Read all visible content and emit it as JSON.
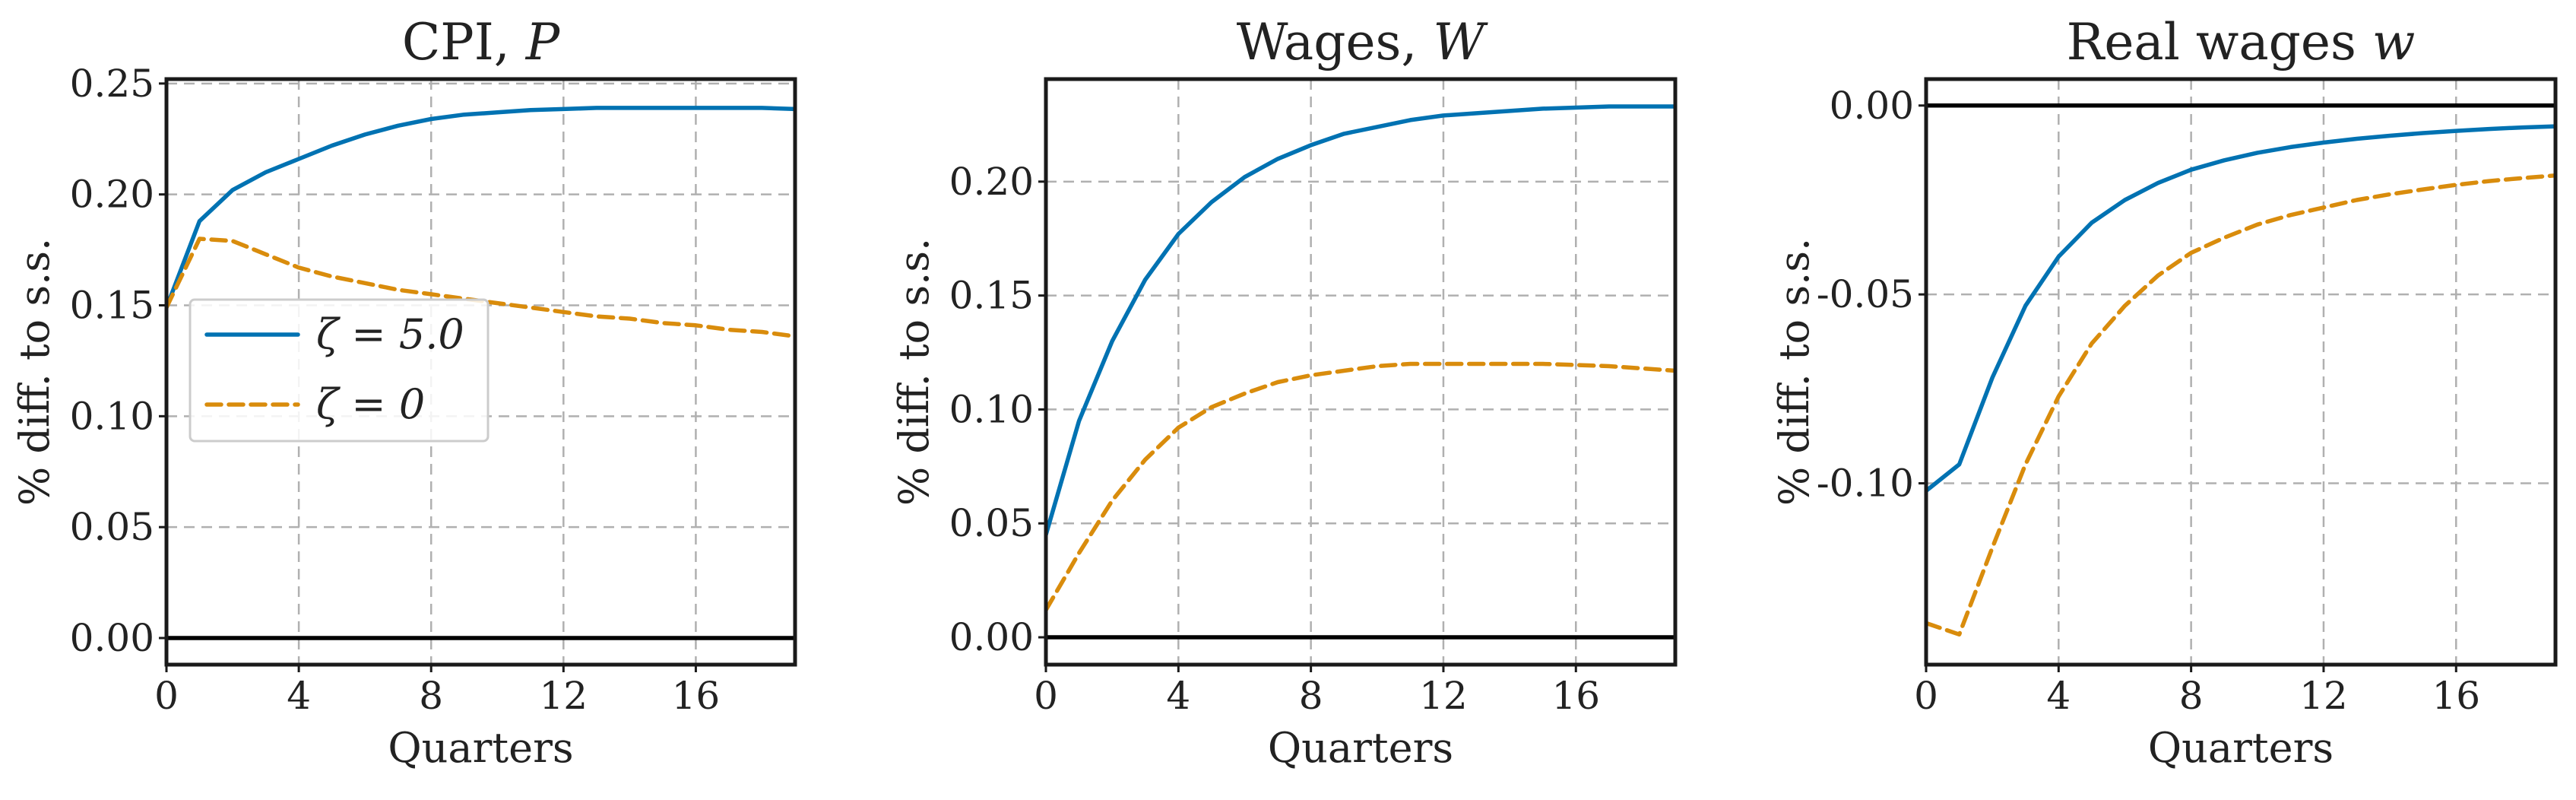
{
  "colors": {
    "zeta_5": "#0072b2",
    "zeta_0": "#d98c0c"
  },
  "chart_data": [
    {
      "type": "line",
      "title": "CPI, P",
      "title_parts": [
        "CPI, ",
        "P"
      ],
      "xlabel": "Quarters",
      "ylabel": "% diff. to s.s.",
      "xlim": [
        0,
        19
      ],
      "ylim": [
        -0.012,
        0.252
      ],
      "xticks": [
        0,
        4,
        8,
        12,
        16
      ],
      "xtick_labels": [
        "0",
        "4",
        "8",
        "12",
        "16"
      ],
      "yticks": [
        0.0,
        0.05,
        0.1,
        0.15,
        0.2,
        0.25
      ],
      "ytick_labels": [
        "0.00",
        "0.05",
        "0.10",
        "0.15",
        "0.20",
        "0.25"
      ],
      "grid": true,
      "zero_line": true,
      "legend": {
        "placement": "center-left",
        "entries": [
          "ζ = 5.0",
          "ζ = 0"
        ]
      },
      "x": [
        0,
        1,
        2,
        3,
        4,
        5,
        6,
        7,
        8,
        9,
        10,
        11,
        12,
        13,
        14,
        15,
        16,
        17,
        18,
        19
      ],
      "series": [
        {
          "name": "ζ = 5.0",
          "style": "solid",
          "values": [
            0.149,
            0.188,
            0.202,
            0.21,
            0.216,
            0.222,
            0.227,
            0.231,
            0.234,
            0.236,
            0.237,
            0.238,
            0.2385,
            0.239,
            0.239,
            0.239,
            0.239,
            0.239,
            0.239,
            0.2385
          ]
        },
        {
          "name": "ζ = 0",
          "style": "dashed",
          "values": [
            0.149,
            0.18,
            0.179,
            0.173,
            0.167,
            0.163,
            0.16,
            0.157,
            0.155,
            0.153,
            0.151,
            0.149,
            0.147,
            0.145,
            0.144,
            0.142,
            0.141,
            0.139,
            0.138,
            0.136
          ]
        }
      ]
    },
    {
      "type": "line",
      "title": "Wages, W",
      "title_parts": [
        "Wages, ",
        "W"
      ],
      "xlabel": "Quarters",
      "ylabel": "% diff. to s.s.",
      "xlim": [
        0,
        19
      ],
      "ylim": [
        -0.012,
        0.245
      ],
      "xticks": [
        0,
        4,
        8,
        12,
        16
      ],
      "xtick_labels": [
        "0",
        "4",
        "8",
        "12",
        "16"
      ],
      "yticks": [
        0.0,
        0.05,
        0.1,
        0.15,
        0.2
      ],
      "ytick_labels": [
        "0.00",
        "0.05",
        "0.10",
        "0.15",
        "0.20"
      ],
      "grid": true,
      "zero_line": true,
      "x": [
        0,
        1,
        2,
        3,
        4,
        5,
        6,
        7,
        8,
        9,
        10,
        11,
        12,
        13,
        14,
        15,
        16,
        17,
        18,
        19
      ],
      "series": [
        {
          "name": "ζ = 5.0",
          "style": "solid",
          "values": [
            0.045,
            0.095,
            0.13,
            0.157,
            0.177,
            0.191,
            0.202,
            0.21,
            0.216,
            0.221,
            0.224,
            0.227,
            0.229,
            0.23,
            0.231,
            0.232,
            0.2325,
            0.233,
            0.233,
            0.233
          ]
        },
        {
          "name": "ζ = 0",
          "style": "dashed",
          "values": [
            0.012,
            0.037,
            0.06,
            0.078,
            0.092,
            0.101,
            0.107,
            0.112,
            0.115,
            0.117,
            0.119,
            0.12,
            0.12,
            0.12,
            0.12,
            0.12,
            0.1195,
            0.119,
            0.118,
            0.117
          ]
        }
      ]
    },
    {
      "type": "line",
      "title": "Real wages w",
      "title_parts": [
        "Real wages ",
        "w"
      ],
      "xlabel": "Quarters",
      "ylabel": "% diff. to s.s.",
      "xlim": [
        0,
        19
      ],
      "ylim": [
        -0.148,
        0.007
      ],
      "xticks": [
        0,
        4,
        8,
        12,
        16
      ],
      "xtick_labels": [
        "0",
        "4",
        "8",
        "12",
        "16"
      ],
      "yticks": [
        0.0,
        -0.05,
        -0.1
      ],
      "ytick_labels": [
        "0.00",
        "-0.05",
        "-0.10"
      ],
      "grid": true,
      "zero_line": true,
      "x": [
        0,
        1,
        2,
        3,
        4,
        5,
        6,
        7,
        8,
        9,
        10,
        11,
        12,
        13,
        14,
        15,
        16,
        17,
        18,
        19
      ],
      "series": [
        {
          "name": "ζ = 5.0",
          "style": "solid",
          "values": [
            -0.102,
            -0.095,
            -0.072,
            -0.053,
            -0.04,
            -0.031,
            -0.025,
            -0.0205,
            -0.017,
            -0.0145,
            -0.0125,
            -0.011,
            -0.0098,
            -0.0088,
            -0.008,
            -0.0073,
            -0.0067,
            -0.0062,
            -0.0058,
            -0.0055
          ]
        },
        {
          "name": "ζ = 0",
          "style": "dashed",
          "values": [
            -0.137,
            -0.14,
            -0.117,
            -0.095,
            -0.077,
            -0.063,
            -0.053,
            -0.045,
            -0.039,
            -0.035,
            -0.0315,
            -0.029,
            -0.027,
            -0.025,
            -0.0235,
            -0.0222,
            -0.021,
            -0.02,
            -0.0192,
            -0.0185
          ]
        }
      ]
    }
  ]
}
